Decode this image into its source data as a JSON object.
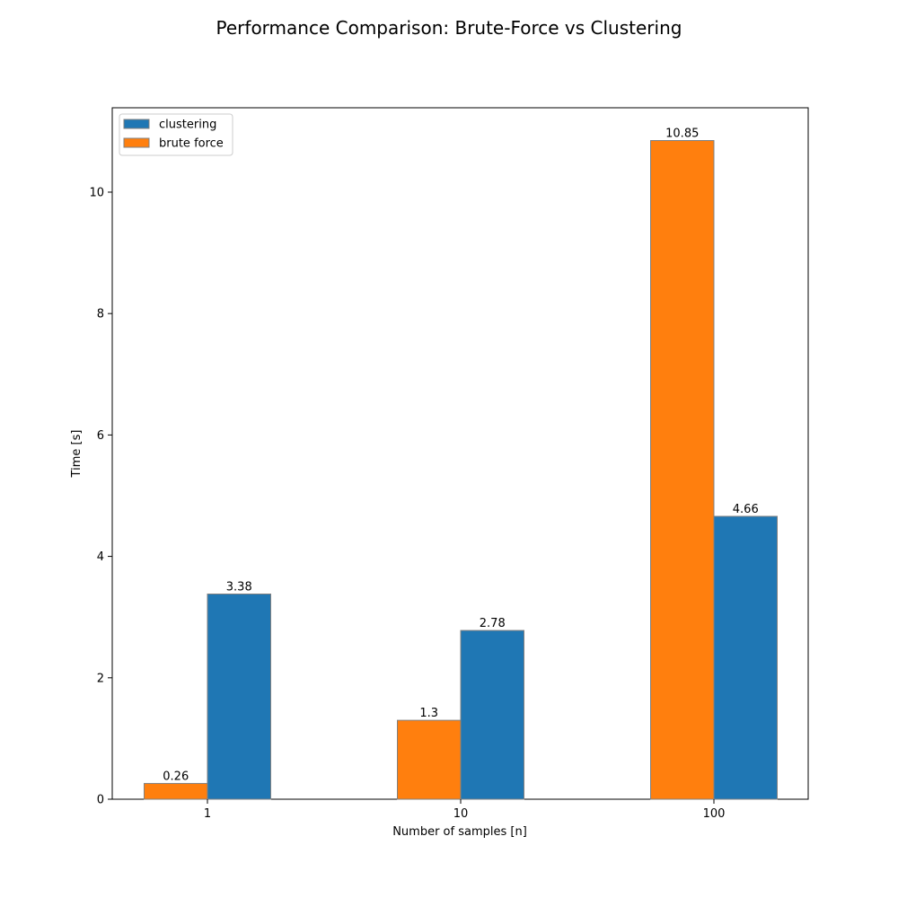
{
  "chart_data": {
    "type": "bar",
    "title": "Performance Comparison: Brute-Force vs Clustering",
    "xlabel": "Number of samples [n]",
    "ylabel": "Time [s]",
    "categories": [
      "1",
      "10",
      "100"
    ],
    "series": [
      {
        "name": "brute force",
        "values": [
          0.26,
          1.3,
          10.85
        ],
        "color": "#ff7f0e",
        "labels": [
          "0.26",
          "1.3",
          "10.85"
        ]
      },
      {
        "name": "clustering",
        "values": [
          3.38,
          2.78,
          4.66
        ],
        "color": "#1f77b4",
        "labels": [
          "3.38",
          "2.78",
          "4.66"
        ]
      }
    ],
    "legend_order": [
      "clustering",
      "brute force"
    ],
    "ylim": [
      0,
      11.39
    ],
    "yticks": [
      0,
      2,
      4,
      6,
      8,
      10
    ],
    "ytick_labels": [
      "0",
      "2",
      "4",
      "6",
      "8",
      "10"
    ],
    "grid": false,
    "legend_position": "top-left",
    "bar_edge_color": "#808080"
  }
}
